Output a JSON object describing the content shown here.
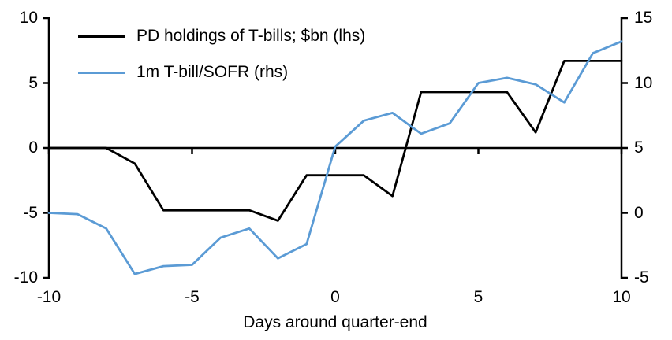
{
  "chart_data": {
    "type": "line",
    "title": "",
    "xlabel": "Days around quarter-end",
    "legend_position": "top-left",
    "grid": false,
    "x_range": [
      -10,
      10
    ],
    "lhs_range": [
      -10,
      10
    ],
    "rhs_range": [
      -5,
      15
    ],
    "x_ticks": [
      -10,
      -5,
      0,
      5,
      10
    ],
    "lhs_ticks": [
      10,
      5,
      0,
      -5,
      -10
    ],
    "rhs_ticks": [
      15,
      10,
      5,
      0,
      -5
    ],
    "axis_color": "#000000",
    "x": [
      -10,
      -9,
      -8,
      -7,
      -6,
      -5,
      -4,
      -3,
      -2,
      -1,
      0,
      1,
      2,
      3,
      4,
      5,
      6,
      7,
      8,
      9,
      10
    ],
    "series": [
      {
        "name": "PD holdings of T-bills; $bn (lhs)",
        "axis": "lhs",
        "color": "#000000",
        "values": [
          0,
          0,
          0,
          -1.2,
          -4.8,
          -4.8,
          -4.8,
          -4.8,
          -5.6,
          -2.1,
          -2.1,
          -2.1,
          -3.7,
          4.3,
          4.3,
          4.3,
          4.3,
          1.2,
          6.7,
          6.7,
          6.7
        ]
      },
      {
        "name": "1m T-bill/SOFR (rhs)",
        "axis": "rhs",
        "color": "#5B9BD5",
        "values": [
          0,
          -0.1,
          -1.2,
          -4.7,
          -4.1,
          -4.0,
          -1.9,
          -1.2,
          -3.5,
          -2.4,
          5.1,
          7.1,
          7.7,
          6.1,
          6.9,
          10.0,
          10.4,
          9.9,
          8.5,
          12.3,
          13.2
        ]
      }
    ]
  }
}
